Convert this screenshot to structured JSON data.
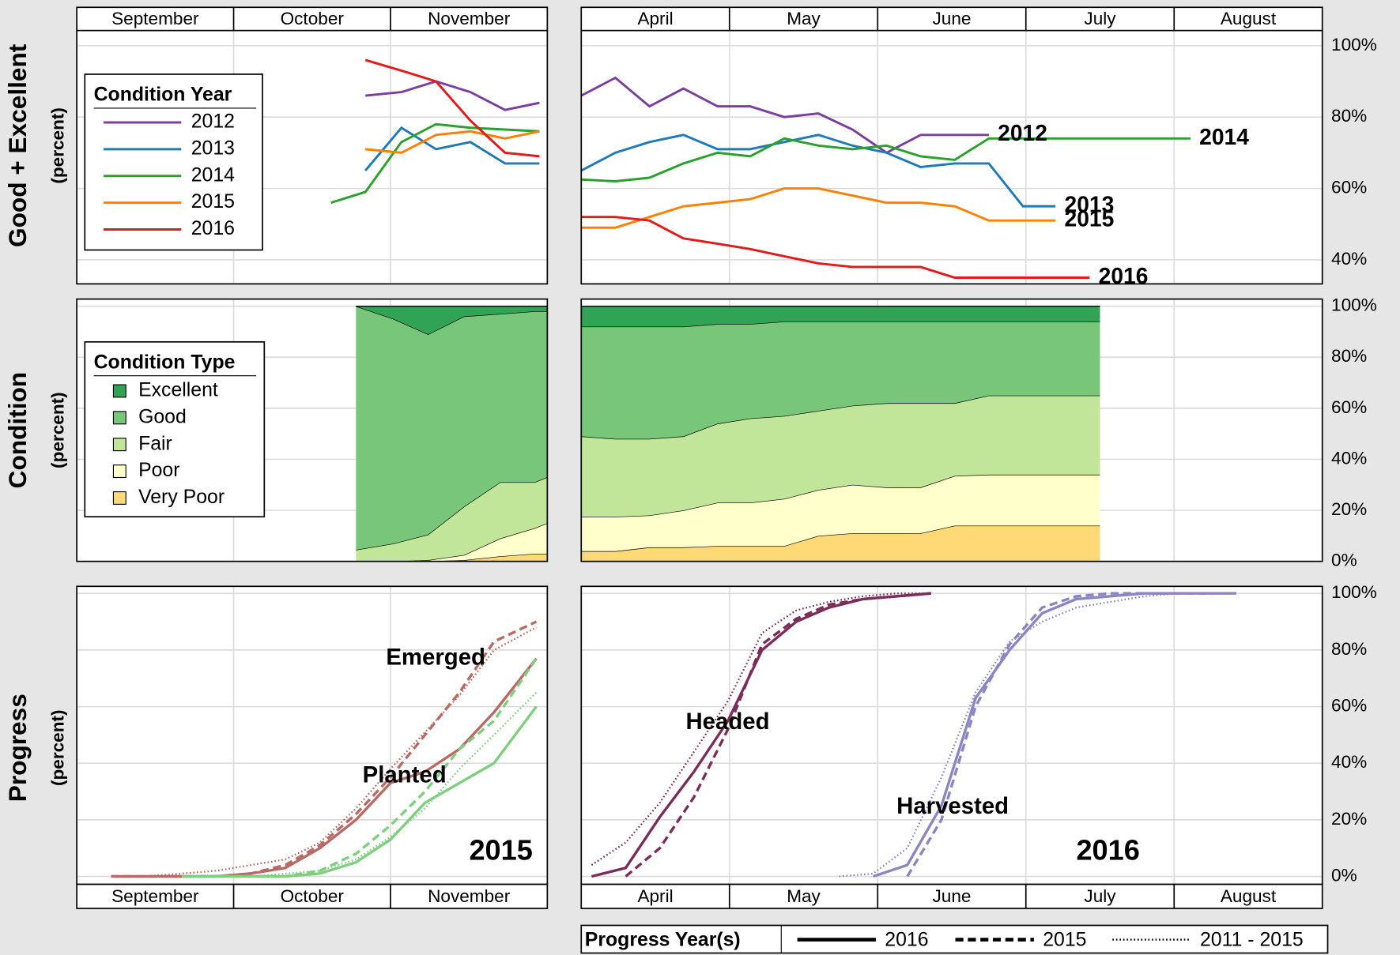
{
  "rows": [
    {
      "title": "Good + Excellent",
      "subtitle": "(percent)"
    },
    {
      "title": "Condition",
      "subtitle": "(percent)"
    },
    {
      "title": "Progress",
      "subtitle": "(percent)"
    }
  ],
  "condition_year_legend": {
    "title": "Condition Year"
  },
  "condition_type_legend": {
    "title": "Condition Type"
  },
  "progress_legend": {
    "title": "Progress Year(s)",
    "entries": [
      {
        "label": "2016",
        "style": "solid"
      },
      {
        "label": "2015",
        "style": "dashed"
      },
      {
        "label": "2011 - 2015",
        "style": "dotted"
      }
    ]
  },
  "chart_data": [
    {
      "type": "line",
      "categories": [
        "September",
        "October",
        "November"
      ],
      "month_strip": "top",
      "xlim": [
        0,
        3
      ],
      "xticks": [
        0,
        1,
        2,
        3
      ],
      "x": [
        1.62,
        1.84,
        2.07,
        2.29,
        2.51,
        2.73,
        2.95
      ],
      "ylim": [
        33.25,
        104.25
      ],
      "yticks": [
        40,
        60,
        80,
        100
      ],
      "grid": true,
      "series": [
        {
          "name": "2012",
          "color": "#7b3fa0",
          "values": [
            null,
            86,
            87,
            90,
            87,
            82,
            84
          ]
        },
        {
          "name": "2013",
          "color": "#1f7ab8",
          "values": [
            null,
            65,
            77,
            71,
            73,
            67,
            67
          ]
        },
        {
          "name": "2014",
          "color": "#2ca02c",
          "values": [
            56,
            59,
            73,
            78,
            77,
            76.5,
            76
          ]
        },
        {
          "name": "2015",
          "color": "#ff8000",
          "values": [
            null,
            71,
            70,
            75,
            76,
            74,
            76
          ]
        },
        {
          "name": "2016",
          "color": "#e31a1c",
          "values": [
            null,
            96,
            93,
            90,
            79,
            70,
            69
          ]
        }
      ]
    },
    {
      "type": "line",
      "categories": [
        "April",
        "May",
        "June",
        "July",
        "August"
      ],
      "month_strip": "top",
      "xlim": [
        0,
        5
      ],
      "xticks": [
        0,
        1,
        2,
        3,
        4,
        5
      ],
      "x": [
        0,
        0.23,
        0.46,
        0.69,
        0.92,
        1.14,
        1.37,
        1.6,
        1.83,
        2.06,
        2.29,
        2.52,
        2.75,
        2.98,
        3.2,
        3.43,
        3.66,
        3.89,
        4.11
      ],
      "ylim": [
        33.25,
        104.25
      ],
      "grid": true,
      "tick_labels": "right",
      "end_labels": true,
      "yticks": [
        {
          "value": 40,
          "label": "40%"
        },
        {
          "value": 60,
          "label": "60%"
        },
        {
          "value": 80,
          "label": "80%"
        },
        {
          "value": 100,
          "label": "100%"
        }
      ],
      "series": [
        {
          "name": "2012",
          "color": "#7b3fa0",
          "values": [
            86,
            91,
            83,
            88,
            83,
            83,
            80,
            81,
            76.5,
            70,
            75,
            75,
            75,
            null,
            null,
            null,
            null,
            null,
            null
          ]
        },
        {
          "name": "2013",
          "color": "#1f7ab8",
          "values": [
            65,
            70,
            73,
            75,
            71,
            71,
            73,
            75,
            72,
            70,
            66,
            67,
            67,
            55,
            55,
            null,
            null,
            null,
            null
          ]
        },
        {
          "name": "2014",
          "color": "#2ca02c",
          "values": [
            62.5,
            62,
            63,
            67,
            70,
            69,
            74,
            72,
            71,
            72,
            69,
            68,
            74,
            74,
            74,
            74,
            74,
            74,
            74
          ]
        },
        {
          "name": "2015",
          "color": "#ff8000",
          "values": [
            49,
            49,
            52,
            55,
            56,
            57,
            60,
            60,
            58,
            56,
            56,
            55,
            51,
            51,
            51,
            null,
            null,
            null,
            null
          ]
        },
        {
          "name": "2016",
          "color": "#e31a1c",
          "values": [
            52,
            52,
            51,
            46,
            44.5,
            43,
            41,
            39,
            38,
            38,
            38,
            35,
            35,
            35,
            35,
            35,
            null,
            null,
            null
          ]
        }
      ]
    },
    {
      "type": "area",
      "xlim": [
        0,
        3
      ],
      "xticks": [
        0,
        1,
        2,
        3
      ],
      "x": [
        1.78,
        2.02,
        2.24,
        2.47,
        2.7,
        2.92,
        3.0
      ],
      "ylim": [
        0,
        102.8
      ],
      "yticks": [
        0,
        20,
        40,
        60,
        80,
        100
      ],
      "grid": true,
      "series": [
        {
          "name": "Excellent",
          "color": "#31a354",
          "values": [
            0,
            5,
            11,
            4,
            3,
            2,
            2
          ]
        },
        {
          "name": "Good",
          "color": "#78c679",
          "values": [
            95.5,
            88,
            78.5,
            74.5,
            66,
            67,
            65
          ]
        },
        {
          "name": "Fair",
          "color": "#c2e699",
          "values": [
            4.5,
            7,
            10,
            19,
            22,
            18,
            18
          ]
        },
        {
          "name": "Poor",
          "color": "#ffffcc",
          "values": [
            0,
            0,
            0.5,
            2,
            7,
            10,
            12
          ]
        },
        {
          "name": "Very Poor",
          "color": "#fed976",
          "values": [
            0,
            0,
            0,
            0.5,
            2,
            3,
            3
          ]
        }
      ]
    },
    {
      "type": "area",
      "xlim": [
        0,
        5
      ],
      "xticks": [
        0,
        1,
        2,
        3,
        4,
        5
      ],
      "x": [
        0,
        0.23,
        0.46,
        0.69,
        0.92,
        1.14,
        1.37,
        1.6,
        1.83,
        2.06,
        2.29,
        2.52,
        2.75,
        2.98,
        3.2,
        3.5
      ],
      "ylim": [
        0,
        102.8
      ],
      "grid": true,
      "tick_labels": "right",
      "yticks": [
        {
          "value": 0,
          "label": "0%"
        },
        {
          "value": 20,
          "label": "20%"
        },
        {
          "value": 40,
          "label": "40%"
        },
        {
          "value": 60,
          "label": "60%"
        },
        {
          "value": 80,
          "label": "80%"
        },
        {
          "value": 100,
          "label": "100%"
        }
      ],
      "series": [
        {
          "name": "Excellent",
          "color": "#31a354",
          "values": [
            8,
            8,
            8,
            8,
            7,
            7,
            6,
            6,
            6,
            6,
            6,
            6,
            6,
            6,
            6,
            6
          ]
        },
        {
          "name": "Good",
          "color": "#78c679",
          "values": [
            43,
            44,
            44,
            43,
            39,
            37,
            37,
            35,
            33,
            32,
            32,
            32,
            29,
            29,
            29,
            29
          ]
        },
        {
          "name": "Fair",
          "color": "#c2e699",
          "values": [
            31.5,
            30.5,
            30,
            29,
            31,
            33,
            32.5,
            31,
            31,
            33,
            33,
            28.5,
            31,
            31,
            31,
            31
          ]
        },
        {
          "name": "Poor",
          "color": "#ffffcc",
          "values": [
            13.5,
            13.5,
            12.5,
            14.5,
            17,
            17,
            18.5,
            18,
            19,
            18,
            18,
            19.5,
            20,
            20,
            20,
            20
          ]
        },
        {
          "name": "Very Poor",
          "color": "#fed976",
          "values": [
            4,
            4,
            5.5,
            5.5,
            6,
            6,
            6,
            10,
            11,
            11,
            11,
            14,
            14,
            14,
            14,
            14
          ]
        }
      ]
    },
    {
      "type": "progress",
      "categories": [
        "September",
        "October",
        "November"
      ],
      "month_strip": "bottom",
      "xlim": [
        0,
        3
      ],
      "xticks": [
        0,
        1,
        2,
        3
      ],
      "ylim": [
        -2.8,
        102.5
      ],
      "yticks": [
        0,
        20,
        40,
        60,
        80,
        100
      ],
      "grid": true,
      "season_label": "2015",
      "season_color": "#0000ee",
      "groups": [
        {
          "name": "Planted",
          "color": "#b86a64",
          "x": [
            0.22,
            0.44,
            0.67,
            0.89,
            1.11,
            1.33,
            1.55,
            1.78,
            2.0,
            2.22,
            2.44,
            2.66,
            2.93
          ],
          "series": [
            {
              "style": "solid",
              "values": [
                0,
                0,
                0,
                0,
                1,
                3,
                10,
                20,
                33,
                37,
                45,
                58,
                77
              ]
            },
            {
              "style": "dashed",
              "values": [
                0,
                0,
                0,
                0,
                1,
                4,
                11,
                22,
                35,
                50,
                65,
                83,
                90
              ]
            },
            {
              "style": "dotted",
              "values": [
                0,
                0,
                1,
                2,
                4,
                6,
                12,
                24,
                38,
                51,
                64,
                80,
                88
              ]
            }
          ]
        },
        {
          "name": "Emerged",
          "color": "#7fcf7f",
          "x": [
            0.22,
            0.44,
            0.67,
            0.89,
            1.11,
            1.33,
            1.55,
            1.78,
            2.0,
            2.22,
            2.44,
            2.66,
            2.93
          ],
          "series": [
            {
              "style": "solid",
              "values": [
                null,
                null,
                0,
                0,
                0,
                0,
                1,
                5,
                13,
                26,
                33,
                40,
                60
              ]
            },
            {
              "style": "dashed",
              "values": [
                null,
                null,
                0,
                0,
                0,
                0,
                2,
                8,
                18,
                30,
                45,
                55,
                77
              ]
            },
            {
              "style": "dotted",
              "values": [
                null,
                null,
                0,
                0,
                0,
                1,
                2,
                6,
                14,
                24,
                38,
                50,
                65
              ]
            }
          ]
        }
      ]
    },
    {
      "type": "progress",
      "categories": [
        "April",
        "May",
        "June",
        "July",
        "August"
      ],
      "month_strip": "bottom",
      "xlim": [
        0,
        5
      ],
      "xticks": [
        0,
        1,
        2,
        3,
        4,
        5
      ],
      "ylim": [
        -2.8,
        102.5
      ],
      "grid": true,
      "tick_labels": "right",
      "yticks": [
        {
          "value": 0,
          "label": "0%"
        },
        {
          "value": 20,
          "label": "20%"
        },
        {
          "value": 40,
          "label": "40%"
        },
        {
          "value": 60,
          "label": "60%"
        },
        {
          "value": 80,
          "label": "80%"
        },
        {
          "value": 100,
          "label": "100%"
        }
      ],
      "season_label": "2016",
      "season_color": "#0000ee",
      "groups": [
        {
          "name": "Headed",
          "color": "#7b2d5a",
          "x": [
            0.07,
            0.3,
            0.53,
            0.76,
            0.99,
            1.22,
            1.45,
            1.67,
            1.9,
            2.13,
            2.36
          ],
          "series": [
            {
              "style": "solid",
              "values": [
                0,
                3,
                21,
                37,
                55,
                80,
                90,
                95,
                98,
                99,
                100
              ]
            },
            {
              "style": "dashed",
              "values": [
                null,
                0,
                10,
                28,
                52,
                82,
                91,
                96,
                98,
                99,
                100
              ]
            },
            {
              "style": "dotted",
              "values": [
                4,
                12,
                26,
                44,
                62,
                86,
                94,
                97,
                99,
                100,
                100
              ]
            }
          ]
        },
        {
          "name": "Harvested",
          "color": "#8a86c2",
          "x": [
            1.74,
            1.97,
            2.2,
            2.43,
            2.66,
            2.89,
            3.11,
            3.34,
            3.57,
            3.8,
            4.03,
            4.26,
            4.42
          ],
          "series": [
            {
              "style": "solid",
              "values": [
                null,
                0,
                4,
                25,
                63,
                80,
                93,
                98,
                99,
                100,
                100,
                100,
                100
              ]
            },
            {
              "style": "dashed",
              "values": [
                null,
                null,
                0,
                20,
                60,
                82,
                95,
                99,
                100,
                100,
                100,
                100,
                null
              ]
            },
            {
              "style": "dotted",
              "values": [
                0,
                1,
                10,
                35,
                65,
                83,
                90,
                95,
                97,
                99,
                100,
                100,
                null
              ]
            }
          ]
        }
      ]
    }
  ]
}
